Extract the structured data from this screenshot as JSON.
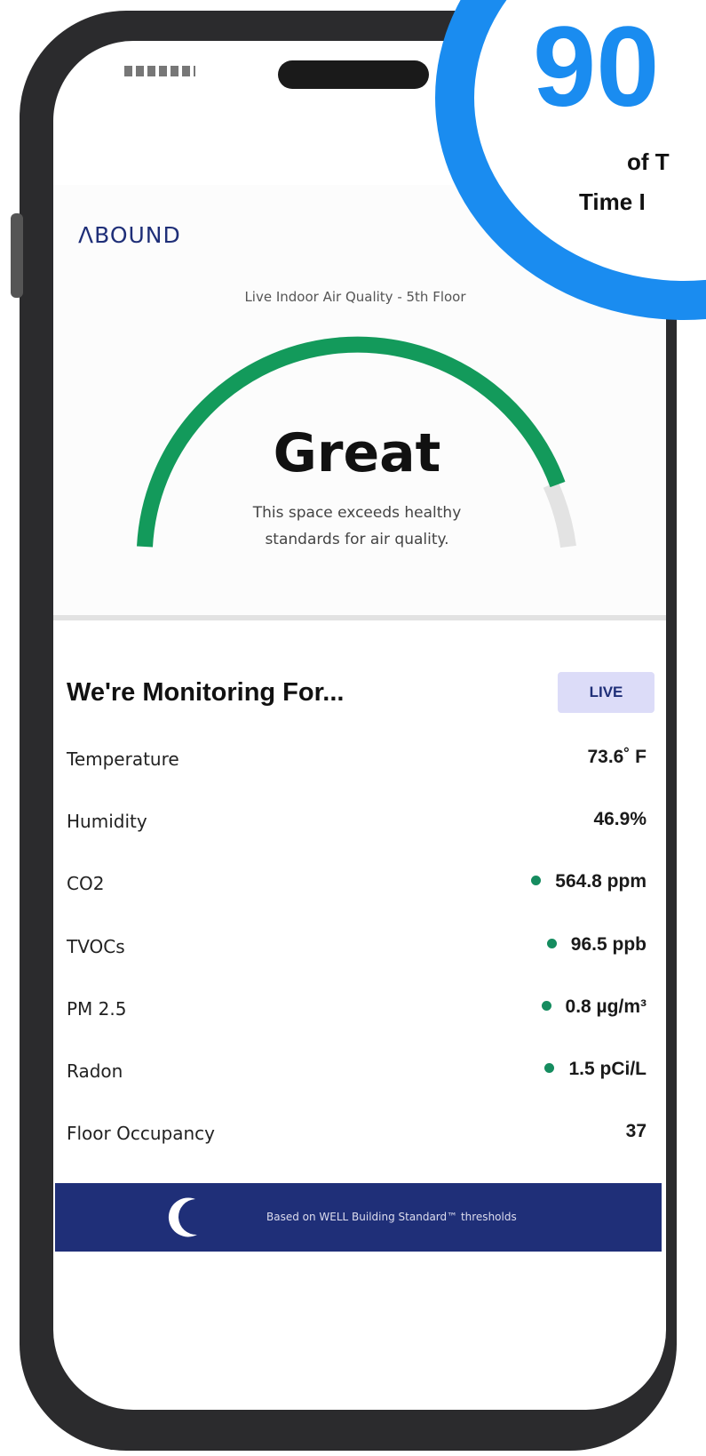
{
  "overlay": {
    "big": "90",
    "line1": "of T",
    "line2": "Time I"
  },
  "app": {
    "logo": "ΛBOUND",
    "subtitle": "Live Indoor Air Quality - 5th Floor",
    "status": "Great",
    "description": [
      "This space exceeds healthy",
      "standards for air quality."
    ],
    "heading": "We're Monitoring For...",
    "badge": "LIVE",
    "rows": [
      {
        "label": "Temperature",
        "value": "73.6˚ F",
        "dot": false
      },
      {
        "label": "Humidity",
        "value": "46.9%",
        "dot": false
      },
      {
        "label": "CO2",
        "value": "564.8 ppm",
        "dot": true
      },
      {
        "label": "TVOCs",
        "value": "96.5 ppb",
        "dot": true
      },
      {
        "label": "PM 2.5",
        "value": "0.8 µg/m³",
        "dot": true
      },
      {
        "label": "Radon",
        "value": "1.5 pCi/L",
        "dot": true
      },
      {
        "label": "Floor Occupancy",
        "value": "37",
        "dot": false
      }
    ],
    "footer": "Based on WELL Building Standard™ thresholds"
  }
}
